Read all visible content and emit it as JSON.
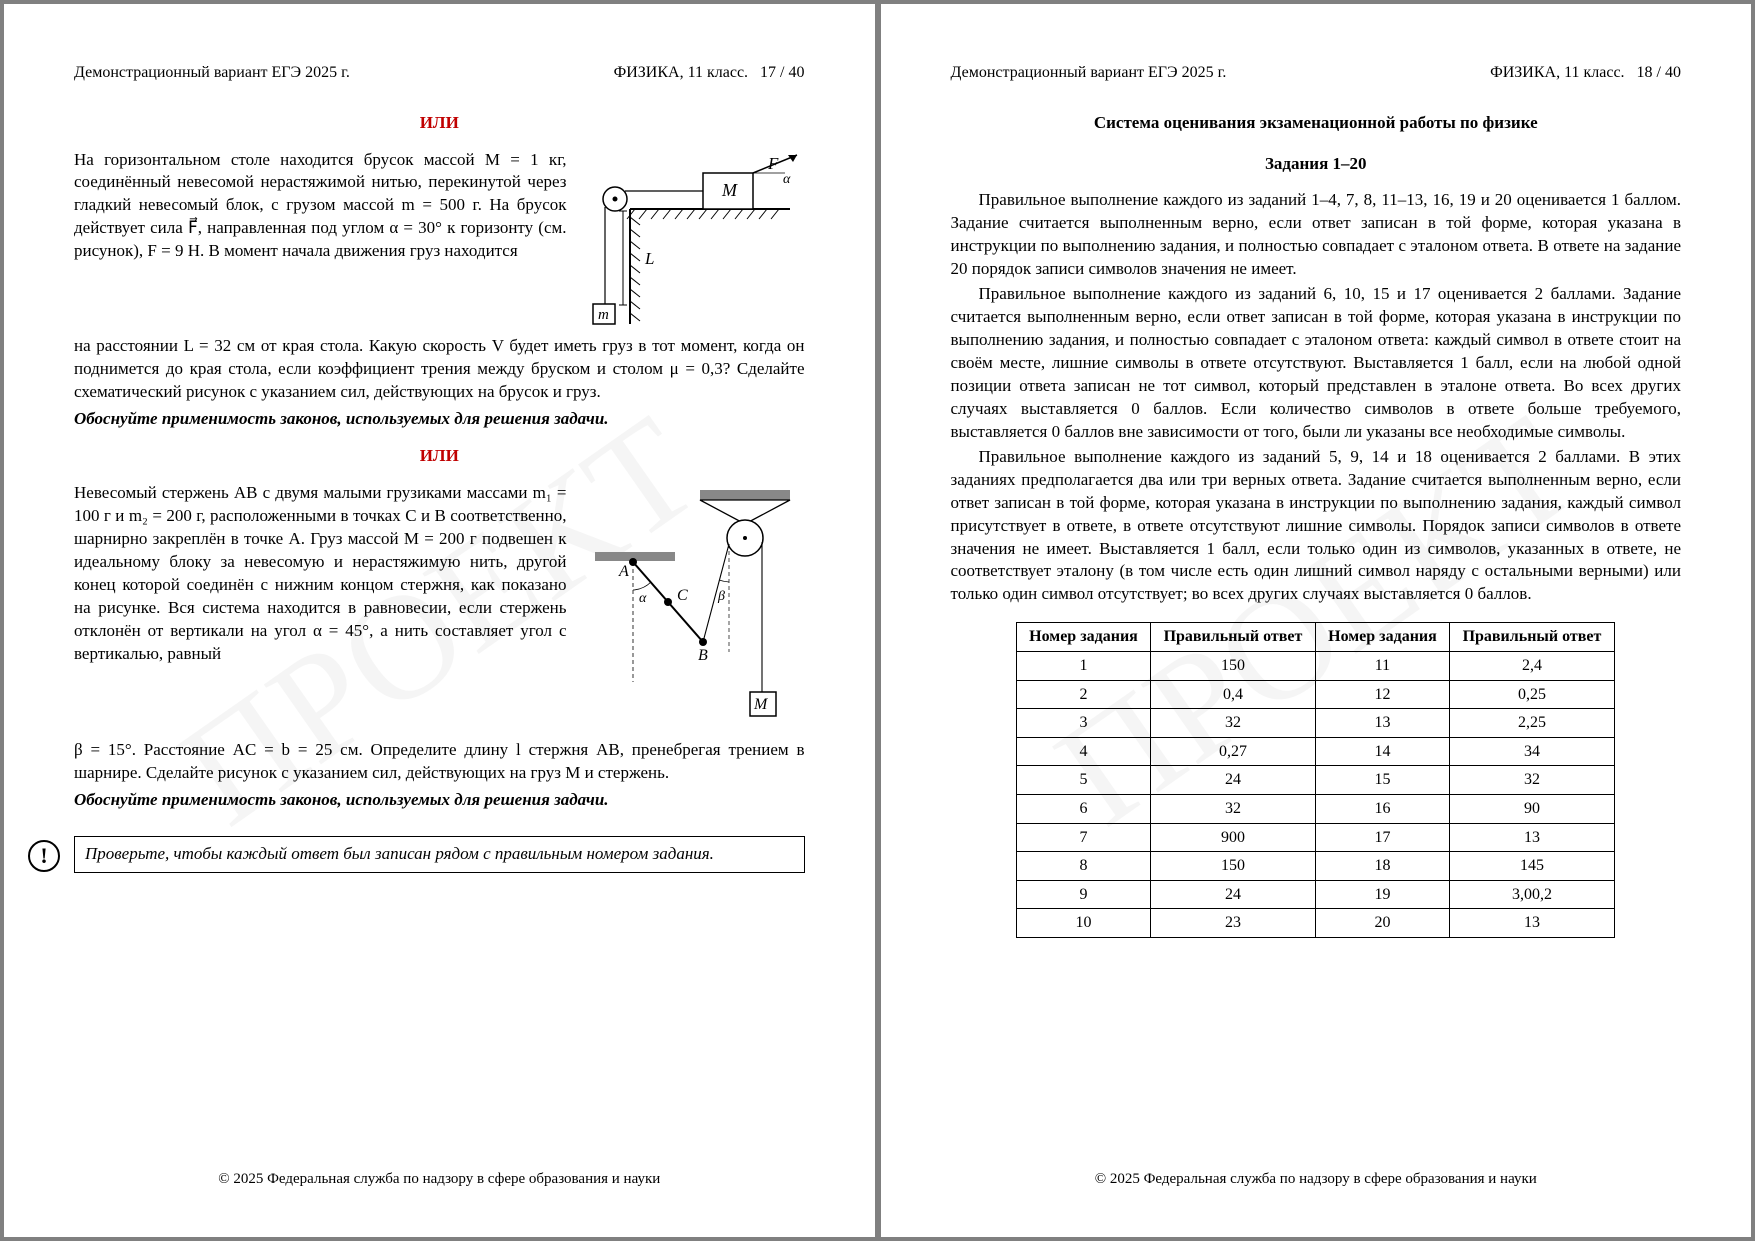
{
  "header": {
    "left": "Демонстрационный вариант ЕГЭ 2025 г.",
    "subj": "ФИЗИКА, 11 класс.",
    "p17": "17 / 40",
    "p18": "18 / 40"
  },
  "or": "ИЛИ",
  "footer": "© 2025 Федеральная служба по надзору в сфере образования и науки",
  "watermark": "ПРОЕКТ",
  "p17": {
    "task1_a": "На горизонтальном столе находится брусок массой M = 1 кг, соединённый невесомой нерастяжимой нитью, перекинутой через гладкий невесомый блок, с грузом массой m = 500 г. На брусок действует сила F⃗, направленная под углом α = 30° к горизонту (см. рисунок), F = 9 Н. В момент начала движения груз находится",
    "task1_b": "на расстоянии L = 32 см от края стола. Какую скорость V будет иметь груз в тот момент, когда он поднимется до края стола, если коэффициент трения между бруском и столом μ = 0,3? Сделайте схематический рисунок с указанием сил, действующих на брусок и груз.",
    "just": "Обоснуйте применимость законов, используемых для решения задачи.",
    "task2_a": "Невесомый стержень AB с двумя малыми грузиками массами m₁ = 100 г и m₂ = 200 г, расположенными в точках C и B соответственно, шарнирно закреплён в точке A. Груз массой M = 200 г подвешен к идеальному блоку за невесомую и нерастяжимую нить, другой конец которой соединён с нижним концом стержня, как показано на рисунке. Вся система находится в равновесии, если стержень отклонён от вертикали на угол α = 45°, а нить составляет угол с вертикалью, равный",
    "task2_b": "β = 15°. Расстояние AC = b = 25 см. Определите длину l стержня AB, пренебрегая трением в шарнире. Сделайте рисунок с указанием сил, действующих на груз M и стержень.",
    "check": "Проверьте, чтобы каждый ответ был записан рядом с правильным номером задания."
  },
  "p18": {
    "title": "Система оценивания экзаменационной работы по физике",
    "sub": "Задания 1–20",
    "par1": "Правильное выполнение каждого из заданий 1–4, 7, 8, 11–13, 16, 19 и 20 оценивается 1 баллом. Задание считается выполненным верно, если ответ записан в той форме, которая указана в инструкции по выполнению задания, и полностью совпадает с эталоном ответа. В ответе на задание 20 порядок записи символов значения не имеет.",
    "par2": "Правильное выполнение каждого из заданий 6, 10, 15 и 17 оценивается 2 баллами. Задание считается выполненным верно, если ответ записан в той форме, которая указана в инструкции по выполнению задания, и полностью совпадает с эталоном ответа: каждый символ в ответе стоит на своём месте, лишние символы в ответе отсутствуют. Выставляется 1 балл, если на любой одной позиции ответа записан не тот символ, который представлен в эталоне ответа. Во всех других случаях выставляется 0 баллов. Если количество символов в ответе больше требуемого, выставляется 0 баллов вне зависимости от того, были ли указаны все необходимые символы.",
    "par3": "Правильное выполнение каждого из заданий 5, 9, 14 и 18 оценивается 2 баллами. В этих заданиях предполагается два или три верных ответа. Задание считается выполненным верно, если ответ записан в той форме, которая указана в инструкции по выполнению задания, каждый символ присутствует в ответе, в ответе отсутствуют лишние символы. Порядок записи символов в ответе значения не имеет. Выставляется 1 балл, если только один из символов, указанных в ответе, не соответствует эталону (в том числе есть один лишний символ наряду с остальными верными) или только один символ отсутствует; во всех других случаях выставляется 0 баллов.",
    "th": [
      "Номер задания",
      "Правильный ответ",
      "Номер задания",
      "Правильный ответ"
    ],
    "rows": [
      [
        "1",
        "150",
        "11",
        "2,4"
      ],
      [
        "2",
        "0,4",
        "12",
        "0,25"
      ],
      [
        "3",
        "32",
        "13",
        "2,25"
      ],
      [
        "4",
        "0,27",
        "14",
        "34"
      ],
      [
        "5",
        "24",
        "15",
        "32"
      ],
      [
        "6",
        "32",
        "16",
        "90"
      ],
      [
        "7",
        "900",
        "17",
        "13"
      ],
      [
        "8",
        "150",
        "18",
        "145"
      ],
      [
        "9",
        "24",
        "19",
        "3,00,2"
      ],
      [
        "10",
        "23",
        "20",
        "13"
      ]
    ]
  },
  "fig1": {
    "labels": {
      "M": "M",
      "F": "F⃗",
      "alpha": "α",
      "L": "L",
      "m": "m"
    },
    "colors": {
      "stroke": "#000000",
      "fill": "#ffffff"
    }
  },
  "fig2": {
    "labels": {
      "A": "A",
      "B": "B",
      "C": "C",
      "M": "M",
      "alpha": "α",
      "beta": "β"
    },
    "colors": {
      "stroke": "#000000",
      "fill": "#ffffff"
    }
  }
}
